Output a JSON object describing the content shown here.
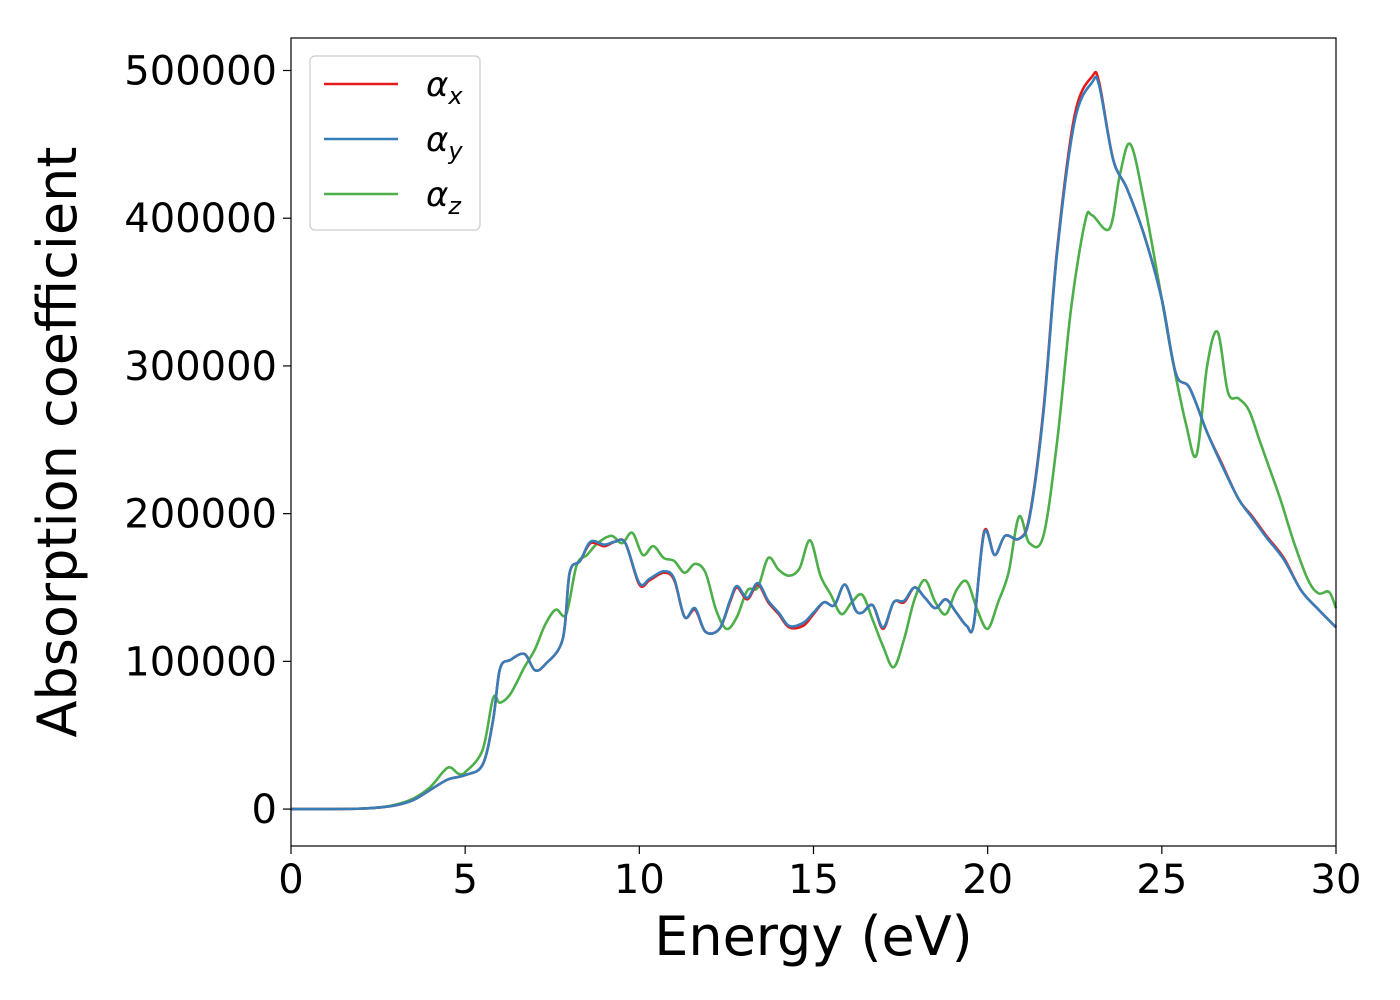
{
  "chart_data": {
    "type": "line",
    "xlabel": "Energy (eV)",
    "ylabel": "Absorption coefficient",
    "xlim": [
      0,
      30
    ],
    "ylim": [
      -25000,
      522000
    ],
    "xticks": [
      0,
      5,
      10,
      15,
      20,
      25,
      30
    ],
    "yticks": [
      0,
      100000,
      200000,
      300000,
      400000,
      500000
    ],
    "grid": false,
    "legend_position": "top-left",
    "series": [
      {
        "name": "αx",
        "color": "#e41a1c",
        "x": [
          0,
          1,
          2,
          2.5,
          3,
          3.5,
          4,
          4.5,
          5,
          5.5,
          5.8,
          6,
          6.3,
          6.7,
          7,
          7.3,
          7.8,
          8,
          8.3,
          8.6,
          9,
          9.3,
          9.6,
          10,
          10.3,
          10.7,
          11,
          11.3,
          11.6,
          11.9,
          12.3,
          12.6,
          12.8,
          13.1,
          13.4,
          13.7,
          14,
          14.3,
          14.7,
          15,
          15.3,
          15.6,
          15.9,
          16.2,
          16.4,
          16.7,
          17,
          17.3,
          17.6,
          17.9,
          18.2,
          18.5,
          18.8,
          19.1,
          19.4,
          19.6,
          19.9,
          20.2,
          20.5,
          20.9,
          21.2,
          21.6,
          22,
          22.5,
          23,
          23.2,
          23.6,
          24,
          24.5,
          25,
          25.4,
          25.8,
          26.3,
          26.7,
          27.2,
          27.6,
          28,
          28.5,
          29,
          29.5,
          30
        ],
        "y": [
          0,
          0,
          300,
          1000,
          2500,
          6000,
          13000,
          20000,
          23000,
          30000,
          60000,
          95000,
          101000,
          105000,
          94000,
          98000,
          115000,
          160000,
          168000,
          180000,
          178000,
          181000,
          180000,
          152000,
          155000,
          160000,
          155000,
          130000,
          135000,
          120000,
          122000,
          140000,
          150000,
          142000,
          152000,
          140000,
          132000,
          123000,
          124000,
          132000,
          140000,
          138000,
          152000,
          135000,
          133000,
          138000,
          122000,
          140000,
          140000,
          150000,
          143000,
          136000,
          142000,
          133000,
          124000,
          125000,
          188000,
          172000,
          185000,
          183000,
          198000,
          270000,
          380000,
          470000,
          496000,
          492000,
          440000,
          420000,
          388000,
          345000,
          295000,
          285000,
          255000,
          235000,
          210000,
          198000,
          185000,
          170000,
          148000,
          135000,
          123000
        ]
      },
      {
        "name": "αy",
        "color": "#377eb8",
        "x": [
          0,
          1,
          2,
          2.5,
          3,
          3.5,
          4,
          4.5,
          5,
          5.5,
          5.8,
          6,
          6.3,
          6.7,
          7,
          7.3,
          7.8,
          8,
          8.3,
          8.6,
          9,
          9.3,
          9.6,
          10,
          10.3,
          10.7,
          11,
          11.3,
          11.6,
          11.9,
          12.3,
          12.6,
          12.8,
          13.1,
          13.4,
          13.7,
          14,
          14.3,
          14.7,
          15,
          15.3,
          15.6,
          15.9,
          16.2,
          16.4,
          16.7,
          17,
          17.3,
          17.6,
          17.9,
          18.2,
          18.5,
          18.8,
          19.1,
          19.4,
          19.6,
          19.9,
          20.2,
          20.5,
          20.9,
          21.2,
          21.6,
          22,
          22.5,
          23,
          23.2,
          23.6,
          24,
          24.5,
          25,
          25.4,
          25.8,
          26.3,
          26.7,
          27.2,
          27.6,
          28,
          28.5,
          29,
          29.5,
          30
        ],
        "y": [
          0,
          0,
          300,
          1000,
          2500,
          6000,
          13000,
          20000,
          23000,
          30000,
          60000,
          95000,
          101000,
          105000,
          94000,
          98000,
          115000,
          160000,
          168000,
          181000,
          179000,
          181000,
          180000,
          153000,
          156000,
          161000,
          156000,
          130000,
          136000,
          120000,
          122000,
          141000,
          151000,
          143000,
          153000,
          141000,
          133000,
          124000,
          126000,
          133000,
          140000,
          138000,
          152000,
          135000,
          133000,
          138000,
          123000,
          140000,
          141000,
          150000,
          143000,
          136000,
          142000,
          133000,
          124000,
          125000,
          187000,
          172000,
          185000,
          183000,
          197000,
          268000,
          378000,
          466000,
          492000,
          490000,
          440000,
          420000,
          388000,
          345000,
          295000,
          285000,
          255000,
          234000,
          210000,
          197000,
          184000,
          169000,
          148000,
          135000,
          123000
        ]
      },
      {
        "name": "αz",
        "color": "#4daf4a",
        "x": [
          0,
          1,
          2,
          2.5,
          3,
          3.5,
          4,
          4.5,
          4.8,
          5,
          5.5,
          5.8,
          6,
          6.3,
          6.7,
          7,
          7.3,
          7.6,
          7.9,
          8.2,
          8.5,
          8.8,
          9.2,
          9.5,
          9.8,
          10.1,
          10.4,
          10.7,
          11,
          11.3,
          11.6,
          11.9,
          12.2,
          12.5,
          12.8,
          13.1,
          13.4,
          13.7,
          14,
          14.3,
          14.6,
          14.9,
          15.2,
          15.5,
          15.8,
          16.1,
          16.4,
          16.7,
          17,
          17.3,
          17.6,
          17.9,
          18.2,
          18.5,
          18.8,
          19.1,
          19.4,
          19.7,
          20,
          20.3,
          20.6,
          20.9,
          21.2,
          21.6,
          22,
          22.4,
          22.8,
          23,
          23.5,
          23.8,
          24.1,
          24.5,
          25,
          25.3,
          25.7,
          26,
          26.3,
          26.6,
          26.9,
          27.2,
          27.5,
          27.8,
          28.1,
          28.4,
          28.8,
          29.2,
          29.5,
          29.8,
          30
        ],
        "y": [
          0,
          0,
          300,
          1000,
          3000,
          7000,
          15000,
          28000,
          24000,
          25000,
          40000,
          75000,
          72000,
          78000,
          96000,
          108000,
          125000,
          135000,
          132000,
          165000,
          172000,
          180000,
          185000,
          180000,
          187000,
          172000,
          178000,
          170000,
          168000,
          160000,
          166000,
          160000,
          135000,
          122000,
          130000,
          148000,
          150000,
          170000,
          162000,
          158000,
          163000,
          182000,
          158000,
          145000,
          132000,
          140000,
          145000,
          128000,
          110000,
          96000,
          115000,
          142000,
          155000,
          140000,
          132000,
          148000,
          154000,
          135000,
          122000,
          140000,
          160000,
          198000,
          180000,
          185000,
          250000,
          340000,
          398000,
          402000,
          393000,
          430000,
          450000,
          410000,
          345000,
          305000,
          260000,
          240000,
          300000,
          323000,
          282000,
          278000,
          270000,
          250000,
          230000,
          210000,
          180000,
          155000,
          146000,
          147000,
          136000
        ]
      }
    ]
  }
}
